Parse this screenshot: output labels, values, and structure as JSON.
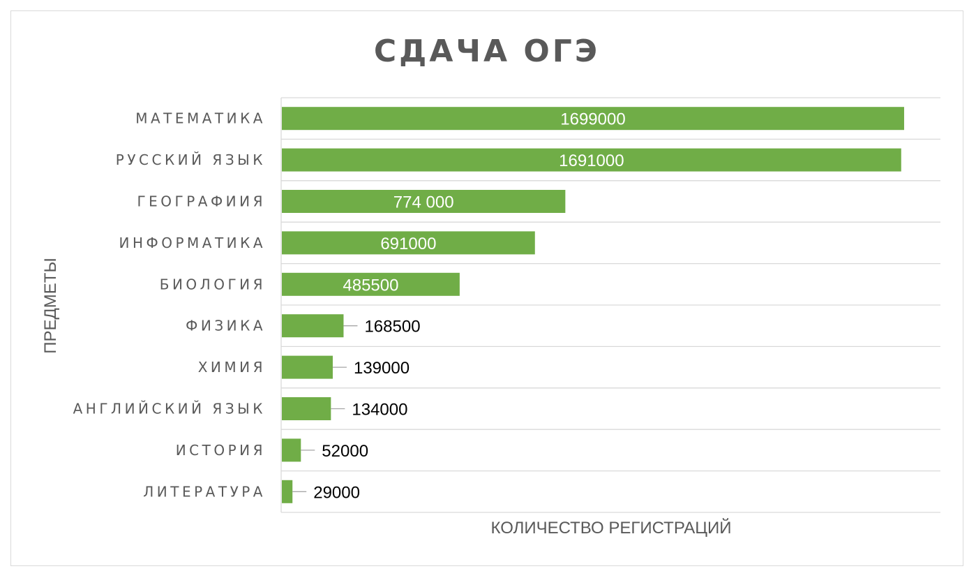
{
  "chart_data": {
    "type": "bar",
    "orientation": "horizontal",
    "title": "СДАЧА ОГЭ",
    "xlabel": "КОЛИЧЕСТВО РЕГИСТРАЦИЙ",
    "ylabel": "ПРЕДМЕТЫ",
    "categories": [
      "МАТЕМАТИКА",
      "РУССКИЙ ЯЗЫК",
      "ГЕОГРАФИИЯ",
      "ИНФОРМАТИКА",
      "БИОЛОГИЯ",
      "ФИЗИКА",
      "ХИМИЯ",
      "АНГЛИЙСКИЙ ЯЗЫК",
      "ИСТОРИЯ",
      "ЛИТЕРАТУРА"
    ],
    "values": [
      1699000,
      1691000,
      774000,
      691000,
      485500,
      168500,
      139000,
      134000,
      52000,
      29000
    ],
    "data_labels": [
      "1699000",
      "1691000",
      "774 000",
      "691000",
      "485500",
      "168500",
      "139000",
      "134000",
      "52000",
      "29000"
    ],
    "xlim": [
      0,
      1800000
    ],
    "grid": true,
    "legend": "none",
    "colors": {
      "bar": "#70ad47",
      "grid": "#d9d9d9",
      "text": "#595959",
      "leader": "#a6a6a6"
    }
  }
}
